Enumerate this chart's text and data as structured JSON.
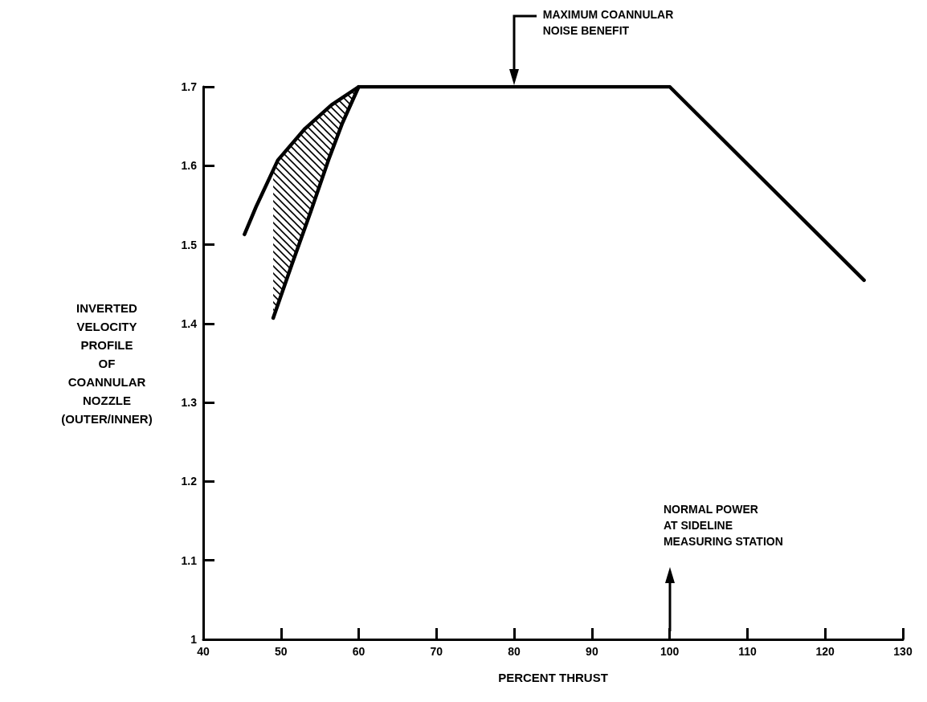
{
  "chart_data": {
    "type": "line",
    "xlabel": "PERCENT THRUST",
    "ylabel": "INVERTED\nVELOCITY\nPROFILE\nOF\nCOANNULAR\nNOZZLE\n(OUTER/INNER)",
    "xlim": [
      40,
      130
    ],
    "xticks": [
      40,
      50,
      60,
      70,
      80,
      90,
      100,
      110,
      120,
      130
    ],
    "ylim": [
      1.0,
      1.7
    ],
    "yticks": [
      1.0,
      1.1,
      1.2,
      1.3,
      1.4,
      1.5,
      1.6,
      1.7
    ],
    "grid": false,
    "marker": "none",
    "line_style": "solid",
    "series": [
      {
        "color": "#000000",
        "x": [
          45.3,
          46.8,
          49.6,
          53.1,
          56.5,
          60,
          100,
          125
        ],
        "values": [
          1.513,
          1.548,
          1.607,
          1.647,
          1.677,
          1.7,
          1.7,
          1.455
        ]
      },
      {
        "color": "#000000",
        "x": [
          49,
          51.4,
          53.8,
          56.1,
          57.9,
          60
        ],
        "values": [
          1.407,
          1.475,
          1.541,
          1.607,
          1.654,
          1.7
        ],
        "lower": [
          1.407,
          1.475,
          1.541,
          1.607,
          1.654,
          1.7
        ],
        "upper": [
          1.595,
          1.628,
          1.652,
          1.673,
          1.688,
          1.7
        ]
      }
    ],
    "annotations": [
      "MAXIMUM COANNULAR\nNOISE BENEFIT",
      "NORMAL POWER\nAT SIDELINE\nMEASURING STATION"
    ]
  }
}
